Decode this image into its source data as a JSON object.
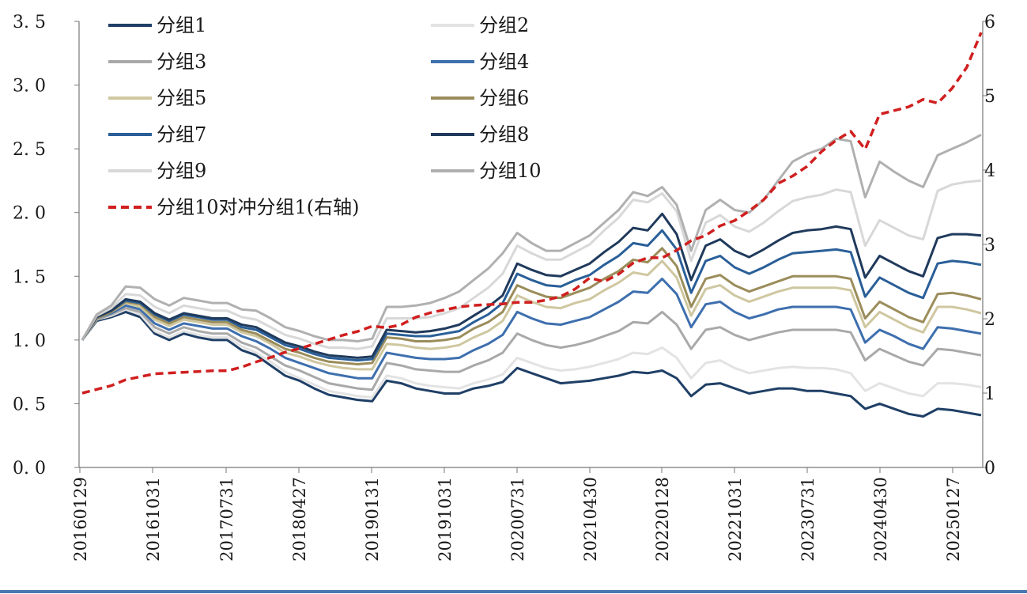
{
  "chart_data": {
    "type": "line",
    "title": "",
    "xlabel": "",
    "ylabel": "",
    "y2label": "",
    "x": [
      "20160129",
      "20160331",
      "20160531",
      "20160731",
      "20160930",
      "20161031",
      "20161231",
      "20170228",
      "20170430",
      "20170630",
      "20170731",
      "20170930",
      "20171130",
      "20180131",
      "20180331",
      "20180427",
      "20180630",
      "20180831",
      "20181031",
      "20181231",
      "20190131",
      "20190331",
      "20190531",
      "20190731",
      "20190930",
      "20191031",
      "20191231",
      "20200229",
      "20200430",
      "20200630",
      "20200731",
      "20200930",
      "20201130",
      "20210131",
      "20210331",
      "20210430",
      "20210630",
      "20210831",
      "20211031",
      "20211231",
      "20220128",
      "20220331",
      "20220531",
      "20220731",
      "20220930",
      "20221031",
      "20221231",
      "20230228",
      "20230430",
      "20230630",
      "20230731",
      "20230930",
      "20231130",
      "20240131",
      "20240331",
      "20240430",
      "20240630",
      "20240831",
      "20241031",
      "20241231",
      "20250127",
      "20250331",
      "20250531"
    ],
    "xticks": [
      "20160129",
      "20161031",
      "20170731",
      "20180427",
      "20190131",
      "20191031",
      "20200731",
      "20210430",
      "20220128",
      "20221031",
      "20230731",
      "20240430",
      "20250127"
    ],
    "ylim": [
      0,
      3.5
    ],
    "yticks": [
      "0. 0",
      "0. 5",
      "1. 0",
      "1. 5",
      "2. 0",
      "2. 5",
      "3. 0",
      "3. 5"
    ],
    "y2lim": [
      0,
      6
    ],
    "y2ticks": [
      "0",
      "1",
      "2",
      "3",
      "4",
      "5",
      "6"
    ],
    "grid": false,
    "legend_position": "top-left",
    "series": [
      {
        "name": "分组1",
        "color": "#1f3f66",
        "dash": false,
        "axis": "left",
        "values": [
          1.0,
          1.15,
          1.18,
          1.22,
          1.18,
          1.05,
          1.0,
          1.05,
          1.02,
          1.0,
          1.0,
          0.92,
          0.88,
          0.8,
          0.72,
          0.68,
          0.62,
          0.57,
          0.55,
          0.53,
          0.52,
          0.68,
          0.66,
          0.62,
          0.6,
          0.58,
          0.58,
          0.62,
          0.64,
          0.67,
          0.78,
          0.74,
          0.7,
          0.66,
          0.67,
          0.68,
          0.7,
          0.72,
          0.75,
          0.74,
          0.76,
          0.7,
          0.56,
          0.65,
          0.66,
          0.62,
          0.58,
          0.6,
          0.62,
          0.62,
          0.6,
          0.6,
          0.58,
          0.56,
          0.46,
          0.5,
          0.46,
          0.42,
          0.4,
          0.46,
          0.45,
          0.43,
          0.41
        ]
      },
      {
        "name": "分组2",
        "color": "#e3e3e3",
        "dash": false,
        "axis": "left",
        "values": [
          1.0,
          1.16,
          1.19,
          1.24,
          1.2,
          1.07,
          1.02,
          1.07,
          1.04,
          1.02,
          1.02,
          0.95,
          0.9,
          0.83,
          0.75,
          0.7,
          0.65,
          0.6,
          0.58,
          0.56,
          0.55,
          0.72,
          0.7,
          0.66,
          0.64,
          0.63,
          0.62,
          0.66,
          0.69,
          0.73,
          0.86,
          0.82,
          0.78,
          0.76,
          0.77,
          0.79,
          0.82,
          0.85,
          0.9,
          0.89,
          0.94,
          0.86,
          0.7,
          0.82,
          0.84,
          0.78,
          0.74,
          0.76,
          0.78,
          0.79,
          0.78,
          0.78,
          0.77,
          0.74,
          0.6,
          0.66,
          0.62,
          0.58,
          0.56,
          0.66,
          0.66,
          0.65,
          0.63
        ]
      },
      {
        "name": "分组3",
        "color": "#a9a9a9",
        "dash": false,
        "axis": "left",
        "values": [
          1.0,
          1.16,
          1.2,
          1.25,
          1.22,
          1.1,
          1.05,
          1.1,
          1.07,
          1.05,
          1.05,
          0.98,
          0.94,
          0.87,
          0.8,
          0.76,
          0.71,
          0.66,
          0.64,
          0.62,
          0.61,
          0.82,
          0.8,
          0.77,
          0.76,
          0.75,
          0.75,
          0.8,
          0.84,
          0.9,
          1.05,
          1.0,
          0.96,
          0.94,
          0.96,
          0.99,
          1.03,
          1.07,
          1.14,
          1.13,
          1.22,
          1.12,
          0.93,
          1.08,
          1.1,
          1.04,
          1.0,
          1.03,
          1.06,
          1.08,
          1.08,
          1.08,
          1.08,
          1.06,
          0.84,
          0.93,
          0.88,
          0.83,
          0.8,
          0.93,
          0.92,
          0.9,
          0.88
        ]
      },
      {
        "name": "分组4",
        "color": "#3e6fae",
        "dash": false,
        "axis": "left",
        "values": [
          1.0,
          1.17,
          1.21,
          1.27,
          1.24,
          1.13,
          1.08,
          1.13,
          1.11,
          1.09,
          1.09,
          1.03,
          0.99,
          0.93,
          0.86,
          0.82,
          0.78,
          0.74,
          0.72,
          0.7,
          0.7,
          0.9,
          0.88,
          0.86,
          0.85,
          0.85,
          0.86,
          0.92,
          0.97,
          1.04,
          1.22,
          1.17,
          1.13,
          1.12,
          1.15,
          1.18,
          1.24,
          1.3,
          1.38,
          1.37,
          1.48,
          1.36,
          1.1,
          1.28,
          1.3,
          1.22,
          1.17,
          1.2,
          1.24,
          1.26,
          1.26,
          1.26,
          1.26,
          1.24,
          0.98,
          1.08,
          1.03,
          0.97,
          0.93,
          1.1,
          1.09,
          1.07,
          1.05
        ]
      },
      {
        "name": "分组5",
        "color": "#cfc7a0",
        "dash": false,
        "axis": "left",
        "values": [
          1.0,
          1.17,
          1.22,
          1.29,
          1.26,
          1.16,
          1.11,
          1.16,
          1.14,
          1.12,
          1.12,
          1.06,
          1.03,
          0.97,
          0.9,
          0.87,
          0.83,
          0.8,
          0.78,
          0.77,
          0.77,
          0.97,
          0.96,
          0.94,
          0.93,
          0.94,
          0.96,
          1.02,
          1.07,
          1.15,
          1.35,
          1.3,
          1.26,
          1.25,
          1.29,
          1.32,
          1.39,
          1.45,
          1.53,
          1.51,
          1.62,
          1.49,
          1.19,
          1.4,
          1.43,
          1.35,
          1.3,
          1.34,
          1.38,
          1.41,
          1.41,
          1.41,
          1.41,
          1.39,
          1.1,
          1.22,
          1.16,
          1.1,
          1.06,
          1.26,
          1.26,
          1.24,
          1.21
        ]
      },
      {
        "name": "分组6",
        "color": "#9b8d5b",
        "dash": false,
        "axis": "left",
        "values": [
          1.0,
          1.17,
          1.22,
          1.3,
          1.28,
          1.18,
          1.13,
          1.18,
          1.16,
          1.14,
          1.14,
          1.08,
          1.05,
          0.99,
          0.93,
          0.9,
          0.86,
          0.83,
          0.82,
          0.81,
          0.82,
          1.02,
          1.01,
          0.99,
          0.99,
          1.0,
          1.02,
          1.09,
          1.14,
          1.22,
          1.43,
          1.38,
          1.34,
          1.33,
          1.37,
          1.41,
          1.48,
          1.54,
          1.63,
          1.61,
          1.72,
          1.58,
          1.26,
          1.48,
          1.51,
          1.43,
          1.38,
          1.42,
          1.46,
          1.5,
          1.5,
          1.5,
          1.5,
          1.48,
          1.17,
          1.3,
          1.24,
          1.18,
          1.14,
          1.36,
          1.37,
          1.35,
          1.32
        ]
      },
      {
        "name": "分组7",
        "color": "#2a5f98",
        "dash": false,
        "axis": "left",
        "values": [
          1.0,
          1.18,
          1.23,
          1.31,
          1.29,
          1.2,
          1.15,
          1.2,
          1.18,
          1.16,
          1.16,
          1.1,
          1.08,
          1.02,
          0.96,
          0.93,
          0.89,
          0.86,
          0.85,
          0.84,
          0.85,
          1.05,
          1.04,
          1.03,
          1.03,
          1.05,
          1.07,
          1.14,
          1.2,
          1.29,
          1.52,
          1.47,
          1.43,
          1.42,
          1.47,
          1.51,
          1.59,
          1.66,
          1.76,
          1.74,
          1.86,
          1.71,
          1.37,
          1.62,
          1.66,
          1.57,
          1.52,
          1.57,
          1.63,
          1.68,
          1.69,
          1.7,
          1.71,
          1.69,
          1.34,
          1.49,
          1.43,
          1.37,
          1.33,
          1.6,
          1.62,
          1.61,
          1.59
        ]
      },
      {
        "name": "分组8",
        "color": "#203a5c",
        "dash": false,
        "axis": "left",
        "values": [
          1.0,
          1.18,
          1.23,
          1.32,
          1.3,
          1.21,
          1.16,
          1.21,
          1.19,
          1.17,
          1.17,
          1.12,
          1.1,
          1.04,
          0.98,
          0.95,
          0.91,
          0.88,
          0.87,
          0.86,
          0.87,
          1.08,
          1.07,
          1.06,
          1.07,
          1.09,
          1.12,
          1.19,
          1.26,
          1.35,
          1.6,
          1.55,
          1.51,
          1.5,
          1.55,
          1.6,
          1.69,
          1.77,
          1.88,
          1.86,
          1.99,
          1.83,
          1.47,
          1.74,
          1.79,
          1.7,
          1.65,
          1.71,
          1.78,
          1.84,
          1.86,
          1.87,
          1.89,
          1.87,
          1.49,
          1.66,
          1.6,
          1.54,
          1.5,
          1.8,
          1.83,
          1.83,
          1.82
        ]
      },
      {
        "name": "分组9",
        "color": "#d8d8d8",
        "dash": false,
        "axis": "left",
        "values": [
          1.0,
          1.19,
          1.25,
          1.36,
          1.35,
          1.26,
          1.21,
          1.27,
          1.25,
          1.23,
          1.23,
          1.18,
          1.16,
          1.1,
          1.04,
          1.01,
          0.97,
          0.94,
          0.94,
          0.93,
          0.95,
          1.17,
          1.17,
          1.17,
          1.18,
          1.21,
          1.25,
          1.33,
          1.41,
          1.52,
          1.74,
          1.68,
          1.63,
          1.63,
          1.69,
          1.75,
          1.86,
          1.96,
          2.1,
          2.08,
          2.15,
          2.01,
          1.62,
          1.92,
          1.98,
          1.89,
          1.85,
          1.92,
          2.01,
          2.09,
          2.12,
          2.14,
          2.18,
          2.16,
          1.74,
          1.94,
          1.88,
          1.82,
          1.79,
          2.17,
          2.22,
          2.24,
          2.25
        ]
      },
      {
        "name": "分组10",
        "color": "#b0b0b0",
        "dash": false,
        "axis": "left",
        "values": [
          1.0,
          1.2,
          1.27,
          1.42,
          1.41,
          1.32,
          1.27,
          1.33,
          1.31,
          1.29,
          1.29,
          1.24,
          1.23,
          1.17,
          1.1,
          1.07,
          1.03,
          1.0,
          1.0,
          0.99,
          1.01,
          1.26,
          1.26,
          1.27,
          1.29,
          1.33,
          1.38,
          1.47,
          1.56,
          1.68,
          1.84,
          1.76,
          1.7,
          1.7,
          1.76,
          1.82,
          1.92,
          2.02,
          2.16,
          2.13,
          2.2,
          2.06,
          1.7,
          2.02,
          2.1,
          2.02,
          2.0,
          2.1,
          2.25,
          2.4,
          2.46,
          2.5,
          2.58,
          2.56,
          2.12,
          2.4,
          2.32,
          2.25,
          2.2,
          2.45,
          2.5,
          2.55,
          2.61
        ]
      },
      {
        "name": "分组10对冲分组1(右轴)",
        "color": "#d01f1f",
        "dash": true,
        "axis": "right",
        "values": [
          1.0,
          1.05,
          1.1,
          1.18,
          1.22,
          1.26,
          1.27,
          1.28,
          1.29,
          1.3,
          1.3,
          1.35,
          1.42,
          1.48,
          1.55,
          1.6,
          1.66,
          1.72,
          1.78,
          1.83,
          1.9,
          1.88,
          1.92,
          2.02,
          2.08,
          2.12,
          2.16,
          2.18,
          2.19,
          2.2,
          2.22,
          2.22,
          2.25,
          2.3,
          2.4,
          2.55,
          2.5,
          2.6,
          2.75,
          2.82,
          2.82,
          2.92,
          3.05,
          3.12,
          3.25,
          3.32,
          3.45,
          3.6,
          3.82,
          3.92,
          4.05,
          4.25,
          4.4,
          4.52,
          4.28,
          4.75,
          4.8,
          4.85,
          4.95,
          4.9,
          5.1,
          5.38,
          5.85
        ]
      }
    ]
  }
}
